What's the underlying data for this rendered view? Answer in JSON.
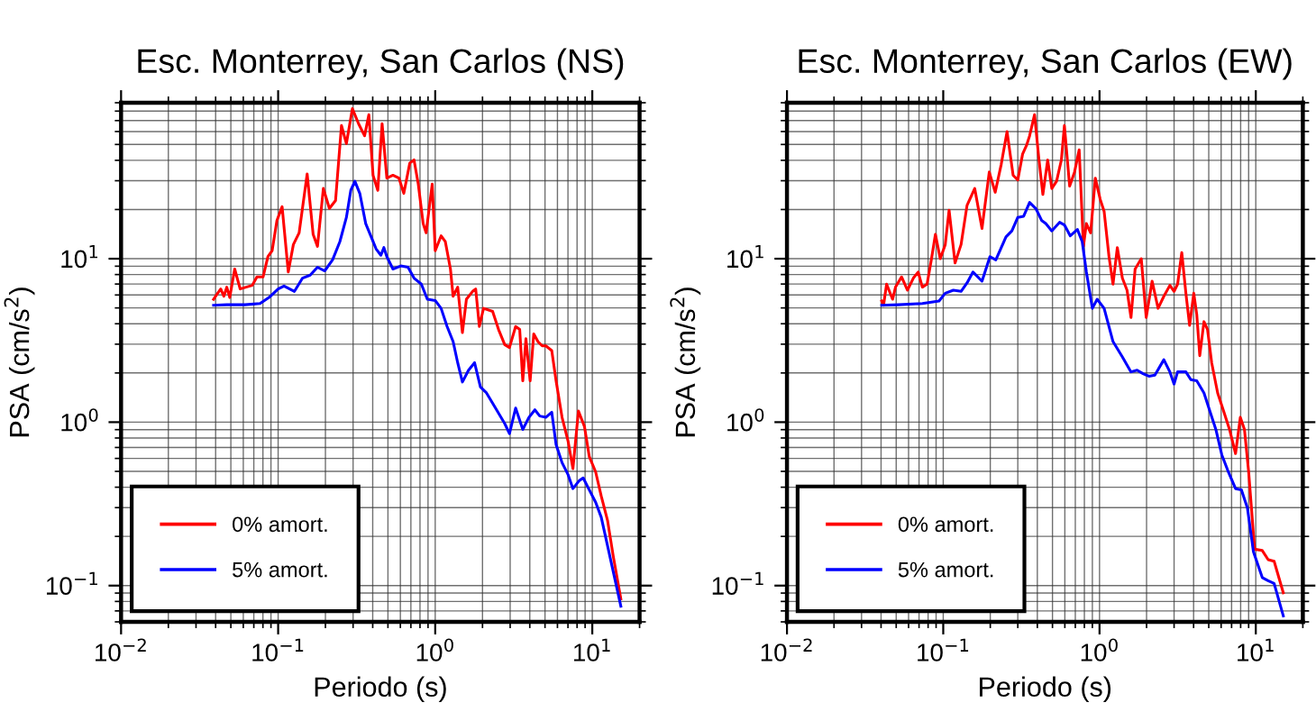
{
  "chart_data": [
    {
      "type": "line",
      "title": "Esc. Monterrey, San Carlos (NS)",
      "xlabel": "Periodo (s)",
      "ylabel": "PSA (cm/s$^{2}$)",
      "log": "xy",
      "grid": true,
      "legend": "bottom left",
      "xlim": [
        0.01,
        20
      ],
      "ylim": [
        0.06,
        90
      ],
      "xticks": [
        {
          "value": 0.01,
          "label": "10$^{−2}$"
        },
        {
          "value": 0.1,
          "label": "10$^{−1}$"
        },
        {
          "value": 1,
          "label": "10$^{0}$"
        },
        {
          "value": 10,
          "label": "10$^{1}$"
        }
      ],
      "yticks": [
        {
          "value": 0.1,
          "label": "10$^{−1}$"
        },
        {
          "value": 1,
          "label": "10$^{0}$"
        },
        {
          "value": 10,
          "label": "10$^{1}$"
        }
      ],
      "series": [
        {
          "name": "0% amort.",
          "color": "#ff0000",
          "x": [
            0.0388,
            0.0412,
            0.0431,
            0.0451,
            0.0471,
            0.0492,
            0.0529,
            0.0573,
            0.0625,
            0.0684,
            0.0733,
            0.0802,
            0.0861,
            0.0916,
            0.0982,
            0.106,
            0.116,
            0.125,
            0.136,
            0.153,
            0.167,
            0.178,
            0.194,
            0.212,
            0.232,
            0.253,
            0.272,
            0.297,
            0.325,
            0.355,
            0.378,
            0.402,
            0.431,
            0.459,
            0.492,
            0.538,
            0.588,
            0.631,
            0.689,
            0.733,
            0.78,
            0.838,
            0.875,
            0.957,
            1.0,
            1.09,
            1.16,
            1.25,
            1.3,
            1.39,
            1.49,
            1.58,
            1.73,
            1.81,
            1.91,
            2.03,
            2.32,
            2.53,
            2.77,
            2.97,
            3.25,
            3.45,
            3.61,
            3.78,
            4.02,
            4.24,
            4.51,
            4.8,
            5.06,
            5.52,
            5.88,
            6.42,
            7.02,
            7.53,
            8.16,
            8.91,
            9.57,
            10.5,
            11.4,
            12.5,
            13.6,
            15.2
          ],
          "values": [
            5.65,
            6.15,
            6.53,
            5.89,
            6.7,
            5.79,
            8.65,
            6.53,
            6.7,
            6.87,
            7.74,
            7.74,
            10.3,
            11.2,
            17.1,
            20.8,
            8.29,
            12.2,
            14.4,
            33.0,
            14.1,
            11.9,
            26.9,
            20.3,
            22.7,
            65.3,
            50.6,
            82.9,
            67.0,
            56.5,
            76.1,
            32.4,
            26.2,
            67.0,
            31.1,
            32.4,
            31.1,
            25.1,
            38.5,
            40.2,
            28.6,
            16.4,
            14.4,
            28.6,
            11.2,
            13.8,
            12.7,
            8.65,
            5.89,
            6.7,
            3.53,
            5.65,
            6.31,
            6.53,
            3.85,
            4.97,
            4.76,
            3.69,
            2.98,
            2.86,
            3.85,
            3.69,
            1.79,
            3.24,
            1.79,
            3.47,
            3.11,
            2.93,
            2.93,
            2.74,
            1.79,
            1.07,
            0.761,
            0.519,
            1.17,
            0.942,
            0.615,
            0.497,
            0.353,
            0.251,
            0.151,
            0.083
          ]
        },
        {
          "name": "5% amort.",
          "color": "#0000ff",
          "x": [
            0.0388,
            0.0471,
            0.0614,
            0.0767,
            0.0875,
            0.1,
            0.109,
            0.127,
            0.143,
            0.16,
            0.178,
            0.198,
            0.222,
            0.247,
            0.272,
            0.29,
            0.308,
            0.331,
            0.361,
            0.395,
            0.42,
            0.451,
            0.471,
            0.492,
            0.538,
            0.604,
            0.671,
            0.733,
            0.816,
            0.891,
            1.0,
            1.09,
            1.19,
            1.3,
            1.39,
            1.49,
            1.63,
            1.78,
            1.94,
            2.12,
            2.42,
            2.77,
            2.97,
            3.25,
            3.61,
            3.95,
            4.31,
            4.63,
            5.06,
            5.52,
            5.88,
            6.42,
            7.02,
            7.53,
            8.23,
            8.75,
            9.57,
            10.5,
            11.4,
            12.7,
            15.2
          ],
          "values": [
            5.19,
            5.23,
            5.23,
            5.32,
            5.79,
            6.53,
            6.81,
            6.31,
            7.61,
            7.94,
            8.87,
            8.43,
            9.84,
            12.7,
            17.9,
            26.2,
            29.8,
            25.1,
            16.4,
            13.3,
            11.5,
            10.5,
            11.7,
            10.3,
            8.65,
            9.03,
            8.87,
            7.61,
            6.99,
            5.65,
            5.55,
            4.97,
            3.85,
            3.11,
            2.31,
            1.76,
            2.08,
            2.31,
            1.64,
            1.51,
            1.22,
            0.98,
            0.851,
            1.22,
            0.903,
            1.07,
            1.19,
            1.09,
            1.07,
            1.15,
            0.73,
            0.565,
            0.476,
            0.392,
            0.437,
            0.456,
            0.385,
            0.324,
            0.262,
            0.164,
            0.0748
          ]
        }
      ]
    },
    {
      "type": "line",
      "title": "Esc. Monterrey, San Carlos (EW)",
      "xlabel": "Periodo (s)",
      "ylabel": "PSA (cm/s$^{2}$)",
      "log": "xy",
      "grid": true,
      "legend": "bottom left",
      "xlim": [
        0.01,
        20
      ],
      "ylim": [
        0.06,
        90
      ],
      "xticks": [
        {
          "value": 0.01,
          "label": "10$^{−2}$"
        },
        {
          "value": 0.1,
          "label": "10$^{−1}$"
        },
        {
          "value": 1,
          "label": "10$^{0}$"
        },
        {
          "value": 10,
          "label": "10$^{1}$"
        }
      ],
      "yticks": [
        {
          "value": 0.1,
          "label": "10$^{−1}$"
        },
        {
          "value": 1,
          "label": "10$^{0}$"
        },
        {
          "value": 10,
          "label": "10$^{1}$"
        }
      ],
      "series": [
        {
          "name": "0% amort.",
          "color": "#ff0000",
          "x": [
            0.0404,
            0.0415,
            0.0434,
            0.0474,
            0.0495,
            0.0541,
            0.059,
            0.0644,
            0.0691,
            0.0735,
            0.0788,
            0.0839,
            0.0891,
            0.0957,
            0.103,
            0.109,
            0.119,
            0.13,
            0.142,
            0.159,
            0.177,
            0.197,
            0.215,
            0.235,
            0.256,
            0.28,
            0.3,
            0.322,
            0.342,
            0.357,
            0.384,
            0.408,
            0.434,
            0.466,
            0.495,
            0.531,
            0.57,
            0.596,
            0.644,
            0.692,
            0.741,
            0.789,
            0.824,
            0.877,
            0.94,
            1.01,
            1.07,
            1.15,
            1.22,
            1.3,
            1.4,
            1.5,
            1.59,
            1.69,
            1.85,
            1.99,
            2.17,
            2.37,
            2.58,
            2.82,
            3.0,
            3.16,
            3.36,
            3.57,
            3.77,
            4.01,
            4.19,
            4.38,
            4.66,
            4.91,
            5.22,
            5.7,
            6.22,
            6.79,
            7.42,
            7.96,
            8.46,
            9.0,
            9.83,
            11.0,
            12.0,
            13.1,
            15.0
          ],
          "values": [
            5.51,
            5.19,
            6.99,
            5.65,
            6.7,
            7.74,
            6.42,
            7.61,
            8.29,
            6.7,
            6.99,
            9.84,
            14.1,
            10.0,
            12.2,
            19.8,
            9.42,
            12.2,
            21.2,
            26.9,
            15.3,
            33.9,
            25.5,
            37.8,
            59.9,
            32.4,
            30.3,
            43.7,
            49.7,
            56.5,
            76.1,
            41.9,
            24.7,
            40.2,
            26.9,
            29.8,
            40.2,
            65.3,
            27.8,
            33.9,
            46.4,
            11.9,
            16.4,
            14.4,
            31.1,
            23.1,
            19.5,
            10.3,
            6.99,
            11.7,
            7.61,
            6.42,
            4.37,
            8.65,
            10.0,
            4.37,
            7.29,
            4.97,
            5.89,
            6.87,
            6.31,
            6.99,
            10.9,
            6.15,
            3.91,
            6.15,
            4.56,
            2.55,
            4.12,
            3.69,
            2.31,
            1.51,
            1.17,
            0.903,
            0.642,
            1.07,
            0.903,
            0.497,
            0.167,
            0.164,
            0.144,
            0.141,
            0.0903
          ]
        },
        {
          "name": "5% amort.",
          "color": "#0000ff",
          "x": [
            0.0404,
            0.0517,
            0.0735,
            0.094,
            0.103,
            0.116,
            0.13,
            0.142,
            0.155,
            0.177,
            0.199,
            0.217,
            0.252,
            0.275,
            0.3,
            0.327,
            0.357,
            0.391,
            0.427,
            0.453,
            0.495,
            0.555,
            0.596,
            0.65,
            0.722,
            0.775,
            0.824,
            0.9,
            0.966,
            1.07,
            1.22,
            1.4,
            1.59,
            1.74,
            1.9,
            2.07,
            2.26,
            2.58,
            2.82,
            3.0,
            3.16,
            3.57,
            3.84,
            4.19,
            4.66,
            5.08,
            5.55,
            6.06,
            6.62,
            7.42,
            8.09,
            8.84,
            9.66,
            11.0,
            12.0,
            13.1,
            15.0
          ],
          "values": [
            5.19,
            5.23,
            5.32,
            5.51,
            6.15,
            6.42,
            6.31,
            7.11,
            8.29,
            7.29,
            10.3,
            9.84,
            13.6,
            14.8,
            17.9,
            18.2,
            22.1,
            20.3,
            17.1,
            16.4,
            14.8,
            16.7,
            16.1,
            13.8,
            15.1,
            12.7,
            8.29,
            4.97,
            5.65,
            4.97,
            3.11,
            2.51,
            2.03,
            2.08,
            1.98,
            1.91,
            1.94,
            2.41,
            2.03,
            1.71,
            2.03,
            2.03,
            1.82,
            1.79,
            1.51,
            1.17,
            0.903,
            0.631,
            0.506,
            0.392,
            0.385,
            0.298,
            0.161,
            0.112,
            0.107,
            0.103,
            0.0653
          ]
        }
      ]
    }
  ]
}
